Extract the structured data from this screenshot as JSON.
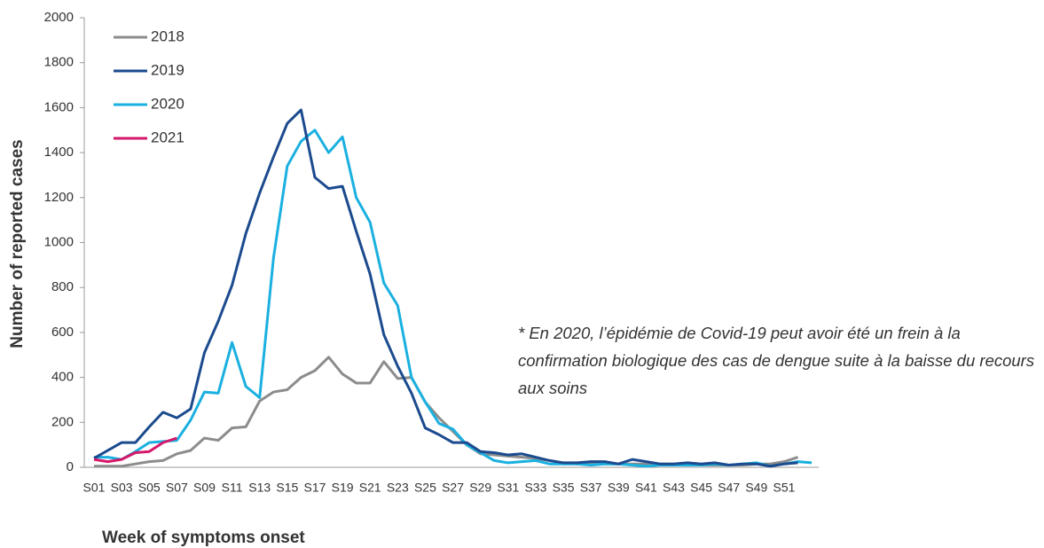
{
  "chart_data": {
    "type": "line",
    "x_label": "Week of symptoms onset",
    "y_label": "Number of reported cases",
    "annotation": "* En 2020, l’épidémie de Covid-19 peut avoir été un frein à la confirmation biologique des cas de dengue suite à la baisse du recours aux soins",
    "categories": [
      "S01",
      null,
      "S03",
      null,
      "S05",
      null,
      "S07",
      null,
      "S09",
      null,
      "S11",
      null,
      "S13",
      null,
      "S15",
      null,
      "S17",
      null,
      "S19",
      null,
      "S21",
      null,
      "S23",
      null,
      "S25",
      null,
      "S27",
      null,
      "S29",
      null,
      "S31",
      null,
      "S33",
      null,
      "S35",
      null,
      "S37",
      null,
      "S39",
      null,
      "S41",
      null,
      "S43",
      null,
      "S45",
      null,
      "S47",
      null,
      "S49",
      null,
      "S51",
      null,
      null
    ],
    "series": [
      {
        "name": "2018",
        "color": "#8c8c8c",
        "values": [
          5,
          5,
          5,
          15,
          25,
          30,
          60,
          75,
          130,
          120,
          175,
          180,
          295,
          335,
          345,
          400,
          430,
          490,
          415,
          375,
          375,
          470,
          395,
          400,
          290,
          220,
          160,
          100,
          60,
          55,
          50,
          45,
          40,
          30,
          20,
          15,
          15,
          15,
          15,
          15,
          15,
          15,
          15,
          15,
          10,
          10,
          10,
          10,
          15,
          15,
          25,
          45,
          null
        ]
      },
      {
        "name": "2019",
        "color": "#1b4a8e",
        "values": [
          40,
          75,
          110,
          110,
          180,
          245,
          220,
          260,
          510,
          650,
          810,
          1040,
          1220,
          1380,
          1530,
          1590,
          1290,
          1240,
          1250,
          1050,
          860,
          590,
          450,
          330,
          175,
          145,
          110,
          110,
          70,
          65,
          55,
          60,
          45,
          30,
          20,
          20,
          25,
          25,
          15,
          35,
          25,
          15,
          15,
          20,
          15,
          20,
          10,
          15,
          15,
          5,
          15,
          20,
          null
        ]
      },
      {
        "name": "2020",
        "color": "#1ab0e0",
        "values": [
          45,
          45,
          35,
          70,
          110,
          115,
          120,
          210,
          335,
          330,
          555,
          360,
          310,
          930,
          1340,
          1450,
          1500,
          1400,
          1470,
          1200,
          1090,
          820,
          720,
          400,
          290,
          195,
          170,
          100,
          65,
          30,
          20,
          25,
          30,
          15,
          15,
          15,
          10,
          15,
          15,
          10,
          5,
          10,
          10,
          10,
          10,
          15,
          10,
          15,
          20,
          5,
          15,
          25,
          20
        ]
      },
      {
        "name": "2021",
        "color": "#d6186a",
        "values": [
          35,
          25,
          35,
          65,
          70,
          110,
          130,
          null,
          null,
          null,
          null,
          null,
          null,
          null,
          null,
          null,
          null,
          null,
          null,
          null,
          null,
          null,
          null,
          null,
          null,
          null,
          null,
          null,
          null,
          null,
          null,
          null,
          null,
          null,
          null,
          null,
          null,
          null,
          null,
          null,
          null,
          null,
          null,
          null,
          null,
          null,
          null,
          null,
          null,
          null,
          null,
          null,
          null
        ]
      }
    ],
    "ylim": [
      0,
      2000
    ],
    "yticks": [
      0,
      200,
      400,
      600,
      800,
      1000,
      1200,
      1400,
      1600,
      1800,
      2000
    ],
    "legend": "upper left",
    "grid": false
  }
}
